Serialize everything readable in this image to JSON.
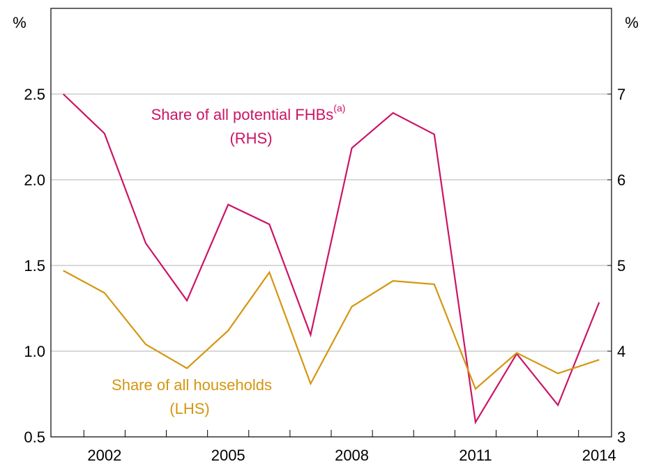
{
  "chart_data": {
    "type": "line",
    "x": [
      2001,
      2002,
      2003,
      2004,
      2005,
      2006,
      2007,
      2008,
      2009,
      2010,
      2011,
      2012,
      2013,
      2014
    ],
    "xlim": [
      2000.7,
      2014.3
    ],
    "xticks": [
      2002,
      2005,
      2008,
      2011,
      2014
    ],
    "xminorticks": [
      2001.5,
      2002.5,
      2003.5,
      2004.5,
      2005.5,
      2006.5,
      2007.5,
      2008.5,
      2009.5,
      2010.5,
      2011.5,
      2012.5,
      2013.5
    ],
    "ylabel": "%",
    "y2label": "%",
    "ylim": [
      0.5,
      3.0
    ],
    "yticks": [
      0.5,
      {
        "value": 1,
        "label": "1.0"
      },
      1.5,
      {
        "value": 2,
        "label": "2.0"
      },
      2.5
    ],
    "y2lim": [
      3,
      8
    ],
    "y2ticks": [
      3,
      4,
      5,
      6,
      7
    ],
    "grid": true,
    "series": [
      {
        "name": "Share of all potential FHBs",
        "footnote_mark": "(a)",
        "side_label": "(RHS)",
        "color": "#cc1466",
        "axis": "y2",
        "values": [
          7.0,
          6.54,
          5.26,
          4.59,
          5.71,
          5.48,
          4.19,
          6.37,
          6.78,
          6.53,
          3.17,
          3.97,
          3.37,
          4.57
        ]
      },
      {
        "name": "Share of all households",
        "side_label": "(LHS)",
        "color": "#d4960f",
        "axis": "y",
        "values": [
          1.47,
          1.34,
          1.04,
          0.9,
          1.12,
          1.46,
          0.81,
          1.26,
          1.41,
          1.39,
          0.78,
          0.99,
          0.87,
          0.95
        ]
      }
    ]
  }
}
